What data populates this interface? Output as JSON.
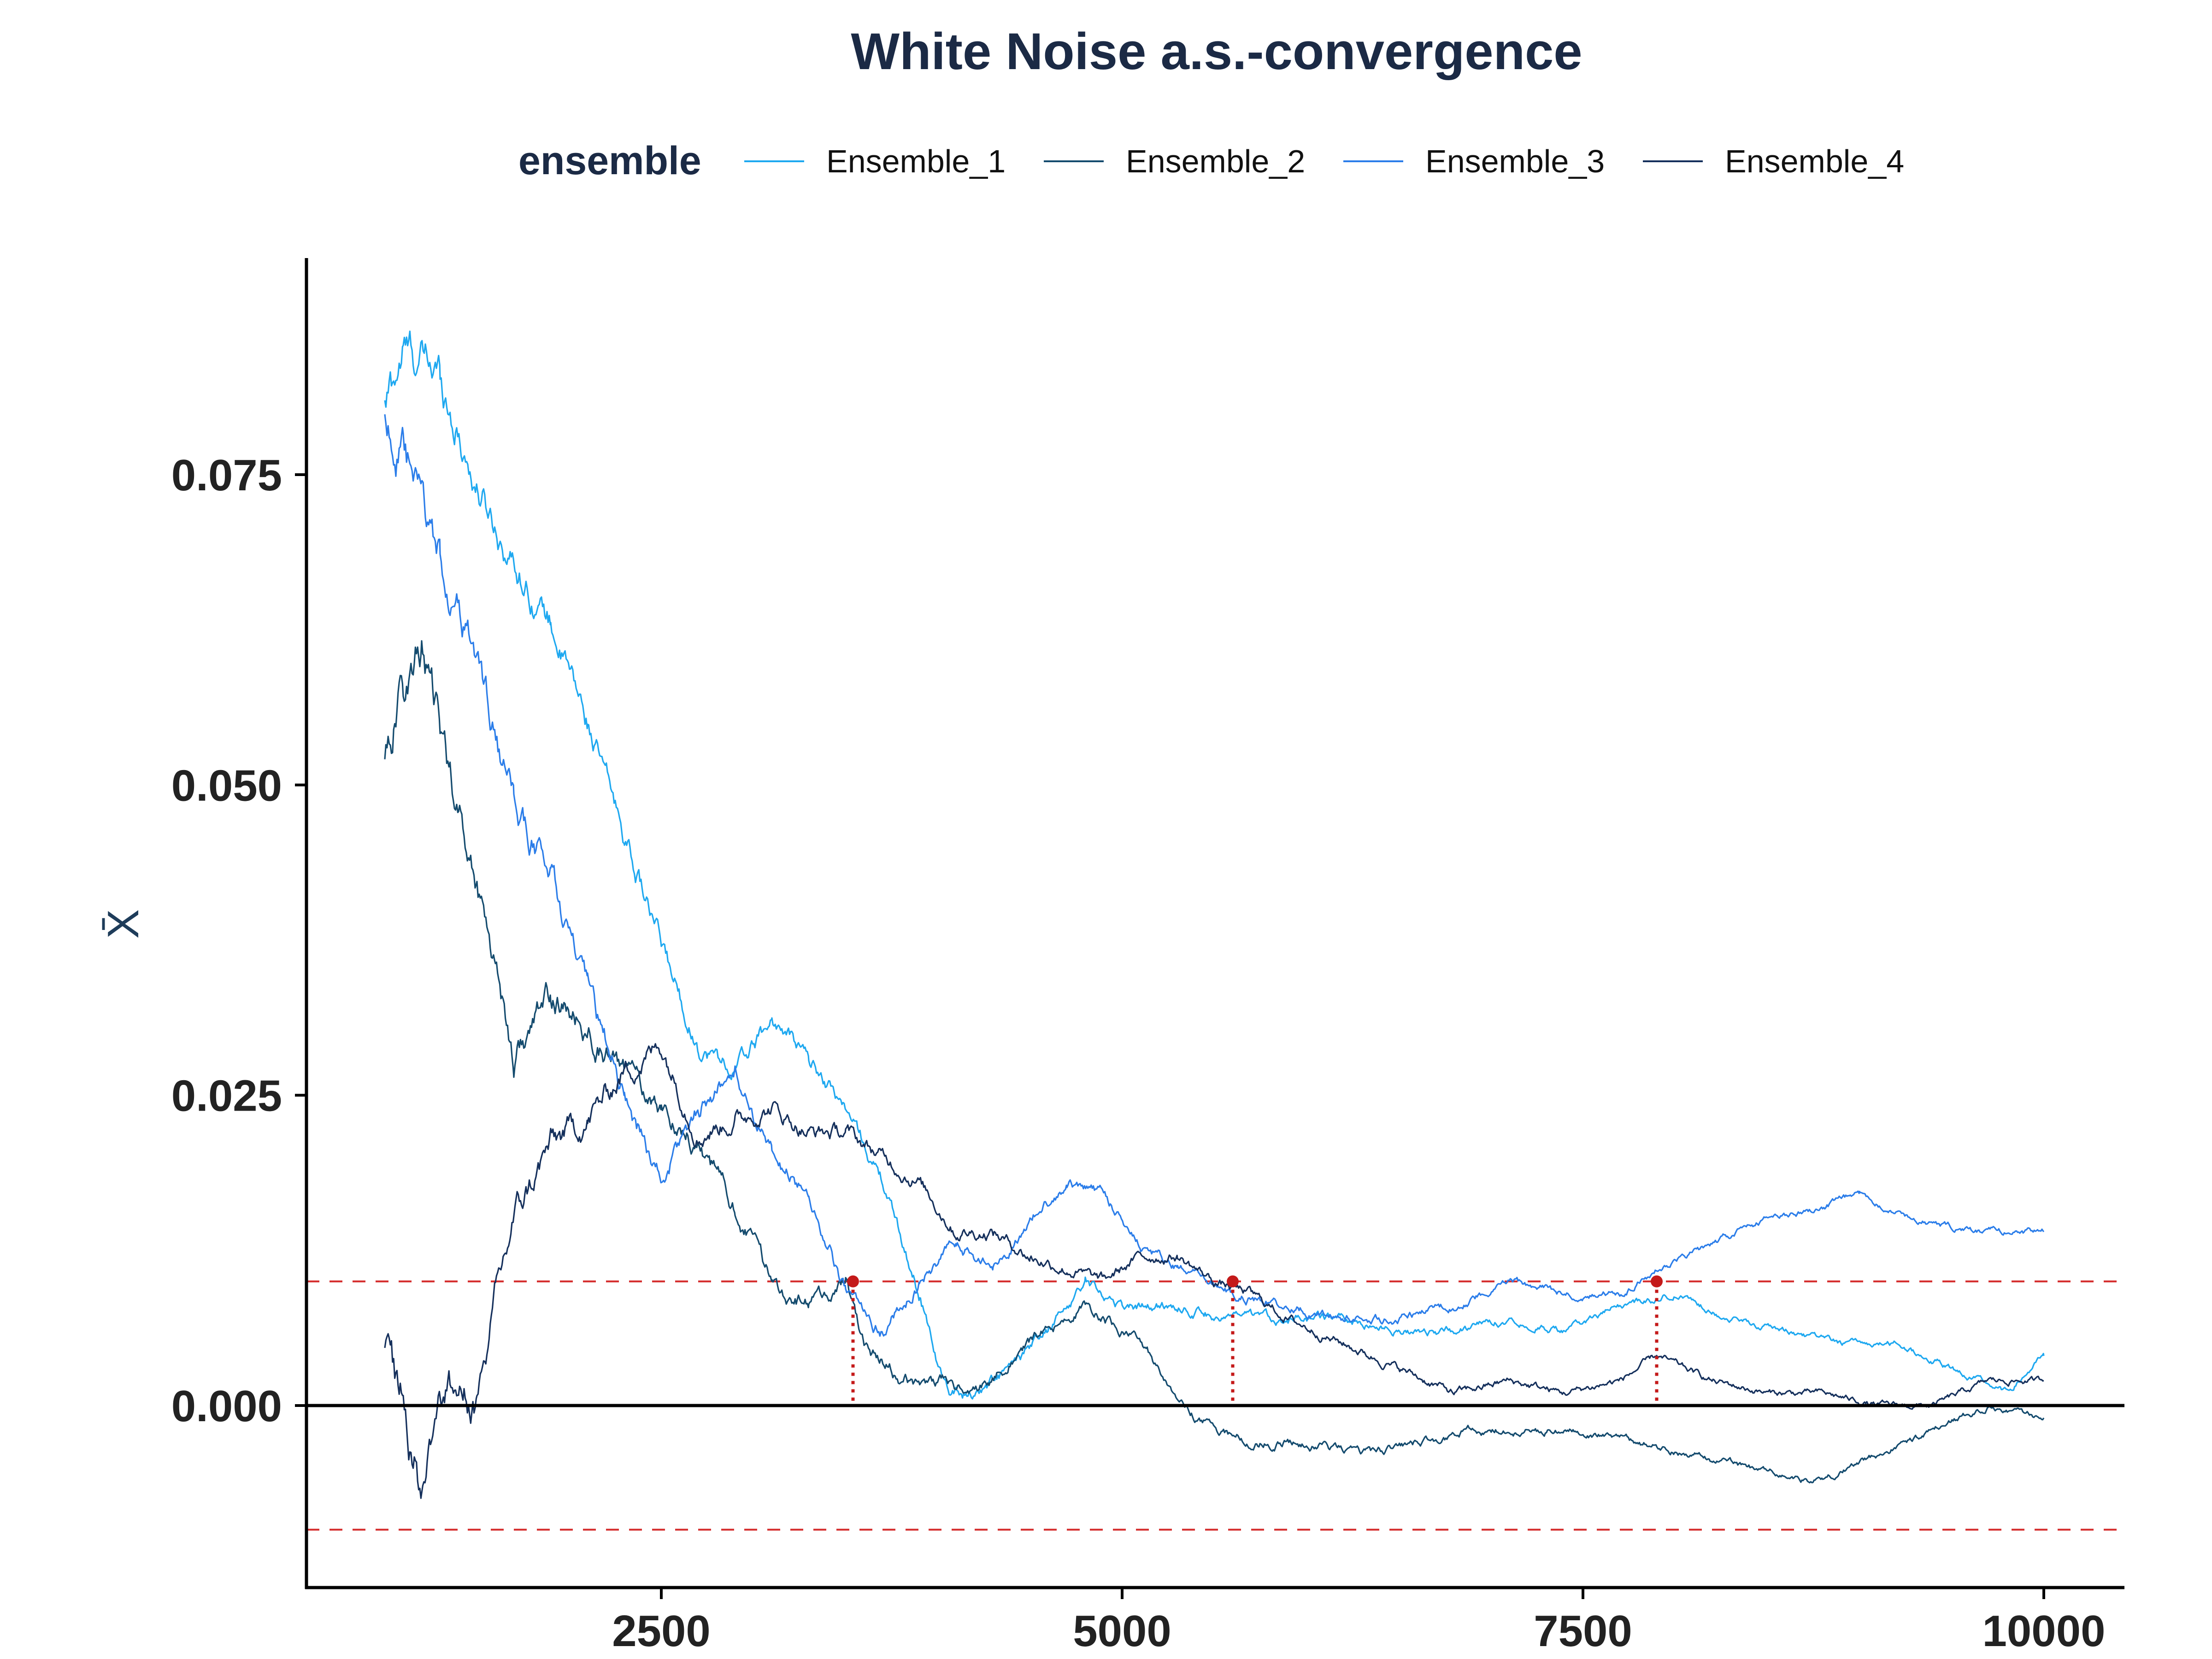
{
  "chart_data": {
    "type": "line",
    "title": "White Noise a.s.-convergence",
    "xlabel": "",
    "ylabel": "X̄",
    "xlim": [
      600,
      10400
    ],
    "ylim": [
      -0.0135,
      0.0935
    ],
    "x_ticks": [
      2500,
      5000,
      7500,
      10000
    ],
    "x_tick_labels": [
      "2500",
      "5000",
      "7500",
      "10000"
    ],
    "y_ticks": [
      0.0,
      0.025,
      0.05,
      0.075
    ],
    "y_tick_labels": [
      "0.000",
      "0.025",
      "0.050",
      "0.075"
    ],
    "grid": false,
    "legend": {
      "title": "ensemble",
      "position": "top",
      "entries": [
        "Ensemble_1",
        "Ensemble_2",
        "Ensemble_3",
        "Ensemble_4"
      ]
    },
    "series": [
      {
        "name": "Ensemble_1",
        "color": "#1ea8f0",
        "x": [
          1000,
          1100,
          1300,
          1500,
          1700,
          1900,
          2100,
          2300,
          2500,
          2700,
          2900,
          3100,
          3300,
          3500,
          3700,
          3900,
          4050,
          4200,
          4400,
          4600,
          4800,
          5000,
          5300,
          5600,
          5900,
          6200,
          6500,
          6800,
          7100,
          7400,
          7700,
          8000,
          8300,
          8600,
          8900,
          9200,
          9500,
          9800,
          10000
        ],
        "values": [
          0.08,
          0.085,
          0.083,
          0.074,
          0.068,
          0.063,
          0.055,
          0.046,
          0.037,
          0.029,
          0.027,
          0.031,
          0.028,
          0.024,
          0.018,
          0.009,
          0.001,
          0.001,
          0.003,
          0.006,
          0.01,
          0.008,
          0.008,
          0.007,
          0.007,
          0.007,
          0.006,
          0.006,
          0.007,
          0.006,
          0.008,
          0.009,
          0.007,
          0.006,
          0.005,
          0.005,
          0.003,
          0.001,
          0.004
        ]
      },
      {
        "name": "Ensemble_2",
        "color": "#144b6e",
        "x": [
          1000,
          1100,
          1200,
          1300,
          1400,
          1500,
          1600,
          1700,
          1900,
          2100,
          2300,
          2500,
          2700,
          2900,
          3100,
          3300,
          3500,
          3600,
          3800,
          4000,
          4200,
          4500,
          4800,
          5100,
          5400,
          5700,
          6000,
          6300,
          6600,
          6900,
          7200,
          7500,
          7800,
          8100,
          8400,
          8700,
          8800,
          9100,
          9400,
          9700,
          10000
        ],
        "values": [
          0.053,
          0.058,
          0.061,
          0.054,
          0.048,
          0.042,
          0.036,
          0.028,
          0.033,
          0.03,
          0.027,
          0.024,
          0.021,
          0.016,
          0.01,
          0.008,
          0.01,
          0.005,
          0.002,
          0.002,
          0.001,
          0.005,
          0.008,
          0.005,
          -0.001,
          -0.003,
          -0.003,
          -0.004,
          -0.003,
          -0.002,
          -0.002,
          -0.002,
          -0.003,
          -0.004,
          -0.005,
          -0.006,
          -0.006,
          -0.004,
          -0.002,
          0.0,
          -0.001
        ]
      },
      {
        "name": "Ensemble_3",
        "color": "#2b7de9",
        "x": [
          1000,
          1100,
          1300,
          1500,
          1700,
          1900,
          2100,
          2300,
          2500,
          2700,
          2900,
          3100,
          3300,
          3500,
          3700,
          3900,
          4100,
          4300,
          4500,
          4700,
          4900,
          5100,
          5300,
          5600,
          5900,
          6200,
          6500,
          6800,
          7100,
          7400,
          7700,
          7900,
          8200,
          8500,
          8800,
          9000,
          9300,
          9600,
          10000
        ],
        "values": [
          0.08,
          0.076,
          0.068,
          0.06,
          0.048,
          0.043,
          0.033,
          0.025,
          0.018,
          0.024,
          0.027,
          0.02,
          0.017,
          0.009,
          0.006,
          0.01,
          0.013,
          0.011,
          0.015,
          0.018,
          0.017,
          0.013,
          0.011,
          0.009,
          0.008,
          0.007,
          0.007,
          0.008,
          0.01,
          0.009,
          0.009,
          0.011,
          0.013,
          0.015,
          0.016,
          0.017,
          0.015,
          0.014,
          0.014
        ]
      },
      {
        "name": "Ensemble_4",
        "color": "#15305c",
        "x": [
          1000,
          1100,
          1200,
          1300,
          1400,
          1500,
          1600,
          1700,
          1900,
          2100,
          2300,
          2500,
          2700,
          2900,
          3100,
          3300,
          3500,
          3700,
          3900,
          4100,
          4300,
          4500,
          4700,
          4900,
          5100,
          5300,
          5500,
          5700,
          5900,
          6200,
          6500,
          6800,
          7100,
          7400,
          7700,
          7900,
          8200,
          8500,
          8800,
          9100,
          9400,
          9700,
          10000
        ],
        "values": [
          0.004,
          0.001,
          -0.007,
          0.002,
          0.001,
          0.0,
          0.008,
          0.015,
          0.021,
          0.023,
          0.027,
          0.029,
          0.022,
          0.023,
          0.024,
          0.022,
          0.022,
          0.02,
          0.018,
          0.014,
          0.014,
          0.012,
          0.011,
          0.01,
          0.012,
          0.012,
          0.01,
          0.009,
          0.007,
          0.005,
          0.003,
          0.001,
          0.002,
          0.001,
          0.002,
          0.004,
          0.002,
          0.001,
          0.001,
          0.0,
          0.0,
          0.002,
          0.002
        ]
      }
    ],
    "reference_lines": {
      "zero": 0.0,
      "bands": [
        0.01,
        -0.01
      ]
    },
    "markers": [
      {
        "x": 3540,
        "y": 0.01
      },
      {
        "x": 5600,
        "y": 0.01
      },
      {
        "x": 7900,
        "y": 0.01
      }
    ],
    "colors": {
      "band": "#d42a2a",
      "marker": "#c41a1a",
      "axis": "#000000"
    }
  }
}
